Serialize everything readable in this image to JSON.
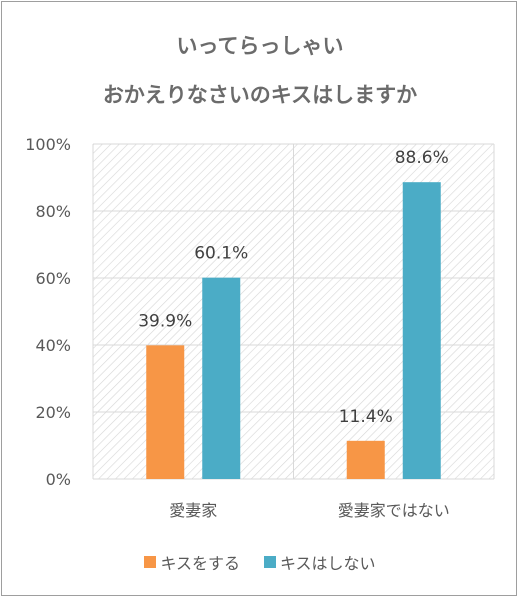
{
  "colors": {
    "series_1": "#f79646",
    "series_2": "#4bacc6",
    "text": "#595959",
    "title": "#6b6b6b",
    "grid": "#d9d9d9"
  },
  "chart_data": {
    "type": "bar",
    "title": "いってらっしゃい",
    "subtitle": "おかえりなさいのキスはしますか",
    "categories": [
      "愛妻家",
      "愛妻家ではない"
    ],
    "series": [
      {
        "name": "キスをする",
        "values": [
          39.9,
          11.4
        ],
        "labels": [
          "39.9%",
          "11.4%"
        ]
      },
      {
        "name": "キスはしない",
        "values": [
          60.1,
          88.6
        ],
        "labels": [
          "60.1%",
          "88.6%"
        ]
      }
    ],
    "ylim": [
      0,
      100
    ],
    "yticks": [
      "0%",
      "20%",
      "40%",
      "60%",
      "80%",
      "100%"
    ],
    "grid": true,
    "plot_background": "diagonal hatch",
    "legend": "bottom"
  }
}
